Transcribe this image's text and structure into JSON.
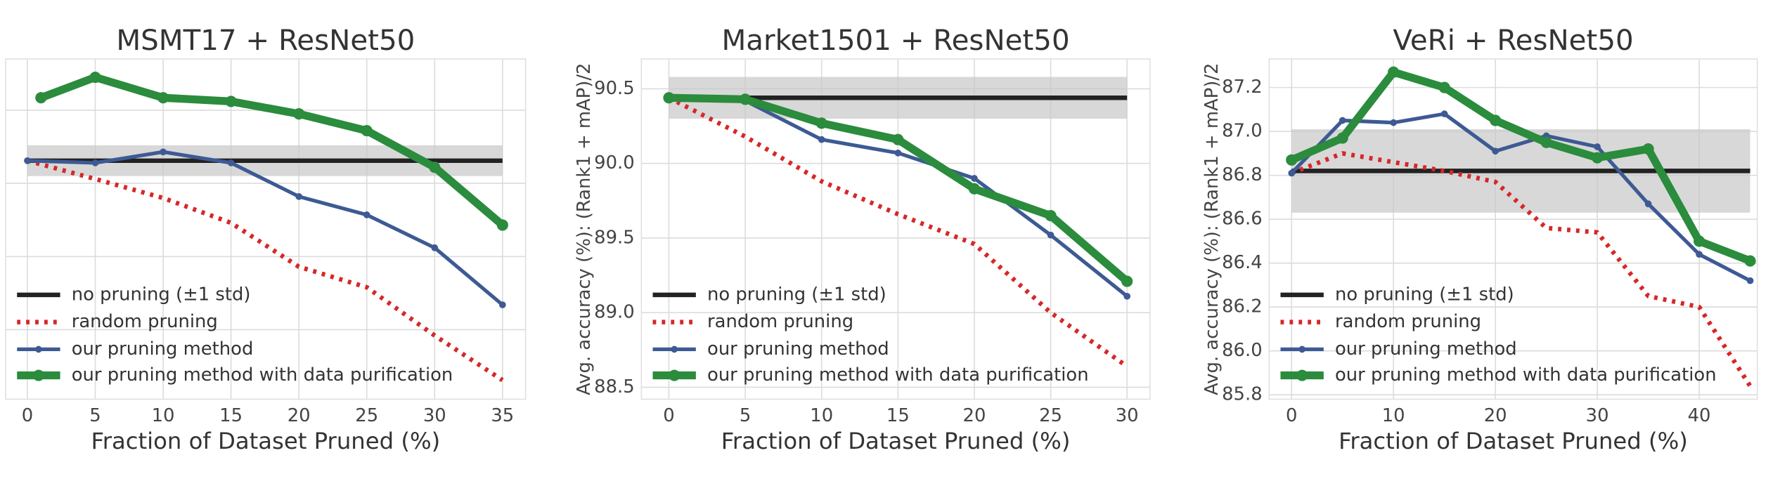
{
  "chart_data": [
    {
      "type": "line",
      "title": "MSMT17 + ResNet50",
      "xlabel": "Fraction of Dataset Pruned (%)",
      "xlim": [
        -1.6,
        36.7
      ],
      "ylim": [
        0.05,
        4.7
      ],
      "xticks": [
        0,
        5,
        10,
        15,
        20,
        25,
        30,
        35
      ],
      "yticks": [
        1,
        2,
        3,
        4
      ],
      "ytick_labels": false,
      "grid": true,
      "legend": "lower left",
      "series": [
        {
          "name": "no pruning (±1 std)",
          "color": "#222222",
          "style": "band",
          "x": [
            0,
            35
          ],
          "values": [
            3.31,
            3.31
          ],
          "std": 0.21
        },
        {
          "name": "random pruning",
          "color": "#d62728",
          "style": "dotted",
          "x": [
            0,
            5,
            10,
            15,
            20,
            25,
            30,
            35
          ],
          "values": [
            3.31,
            3.06,
            2.8,
            2.46,
            1.86,
            1.58,
            0.92,
            0.31
          ]
        },
        {
          "name": "our pruning method",
          "color": "#3d5a94",
          "style": "solid",
          "x": [
            0,
            5,
            10,
            15,
            20,
            25,
            30,
            35
          ],
          "values": [
            3.31,
            3.28,
            3.43,
            3.28,
            2.82,
            2.57,
            2.12,
            1.34
          ]
        },
        {
          "name": "our pruning method with data purification",
          "color": "#2a8c3c",
          "style": "thick",
          "x": [
            1,
            5,
            10,
            15,
            20,
            25,
            30,
            35
          ],
          "values": [
            4.17,
            4.45,
            4.17,
            4.12,
            3.95,
            3.72,
            3.22,
            2.43
          ]
        }
      ]
    },
    {
      "type": "line",
      "title": "Market1501 + ResNet50",
      "xlabel": "Fraction of Dataset Pruned (%)",
      "ylabel": "Avg. accuracy (%): (Rank1 + mAP)/2",
      "xlim": [
        -1.8,
        31.5
      ],
      "ylim": [
        88.42,
        90.7
      ],
      "xticks": [
        0,
        5,
        10,
        15,
        20,
        25,
        30
      ],
      "yticks": [
        {
          "value": 88.5,
          "label": "88.5"
        },
        {
          "value": 89,
          "label": "89.0"
        },
        {
          "value": 89.5,
          "label": "89.5"
        },
        {
          "value": 90,
          "label": "90.0"
        },
        {
          "value": 90.5,
          "label": "90.5"
        }
      ],
      "ytick_labels": true,
      "grid": true,
      "legend": "lower left",
      "series": [
        {
          "name": "no pruning (±1 std)",
          "color": "#222222",
          "style": "band",
          "x": [
            0,
            30
          ],
          "values": [
            90.44,
            90.44
          ],
          "std": 0.14
        },
        {
          "name": "random pruning",
          "color": "#d62728",
          "style": "dotted",
          "x": [
            0,
            5,
            10,
            15,
            20,
            25,
            30
          ],
          "values": [
            90.44,
            90.18,
            89.88,
            89.66,
            89.46,
            89.0,
            88.64
          ]
        },
        {
          "name": "our pruning method",
          "color": "#3d5a94",
          "style": "solid",
          "x": [
            0,
            5,
            10,
            15,
            20,
            25,
            30
          ],
          "values": [
            90.44,
            90.42,
            90.16,
            90.07,
            89.9,
            89.52,
            89.11
          ]
        },
        {
          "name": "our pruning method with data purification",
          "color": "#2a8c3c",
          "style": "thick",
          "x": [
            0,
            5,
            10,
            15,
            20,
            25,
            30
          ],
          "values": [
            90.44,
            90.43,
            90.27,
            90.16,
            89.83,
            89.65,
            89.21
          ]
        }
      ]
    },
    {
      "type": "line",
      "title": "VeRi + ResNet50",
      "xlabel": "Fraction of Dataset Pruned (%)",
      "ylabel": "Avg. accuracy (%): (Rank1 + mAP)/2",
      "xlim": [
        -2.2,
        45.7
      ],
      "ylim": [
        85.78,
        87.33
      ],
      "xticks": [
        0,
        10,
        20,
        30,
        40
      ],
      "yticks": [
        85.8,
        {
          "value": 86,
          "label": "86.0"
        },
        86.2,
        86.4,
        86.6,
        86.8,
        {
          "value": 87,
          "label": "87.0"
        },
        87.2
      ],
      "ytick_labels": true,
      "grid": true,
      "legend": "lower left",
      "series": [
        {
          "name": "no pruning (±1 std)",
          "color": "#222222",
          "style": "band",
          "x": [
            0,
            45
          ],
          "values": [
            86.82,
            86.82
          ],
          "std": 0.19
        },
        {
          "name": "random pruning",
          "color": "#d62728",
          "style": "dotted",
          "x": [
            0,
            5,
            10,
            15,
            20,
            25,
            30,
            35,
            40,
            45
          ],
          "values": [
            86.81,
            86.9,
            86.86,
            86.82,
            86.77,
            86.56,
            86.54,
            86.25,
            86.2,
            85.84
          ]
        },
        {
          "name": "our pruning method",
          "color": "#3d5a94",
          "style": "solid",
          "x": [
            0,
            5,
            10,
            15,
            20,
            25,
            30,
            35,
            40,
            45
          ],
          "values": [
            86.81,
            87.05,
            87.04,
            87.08,
            86.91,
            86.98,
            86.93,
            86.67,
            86.44,
            86.32
          ]
        },
        {
          "name": "our pruning method with data purification",
          "color": "#2a8c3c",
          "style": "thick",
          "x": [
            0,
            5,
            10,
            15,
            20,
            25,
            30,
            35,
            40,
            45
          ],
          "values": [
            86.87,
            86.97,
            87.27,
            87.2,
            87.05,
            86.95,
            86.88,
            86.92,
            86.5,
            86.41
          ]
        }
      ]
    }
  ]
}
